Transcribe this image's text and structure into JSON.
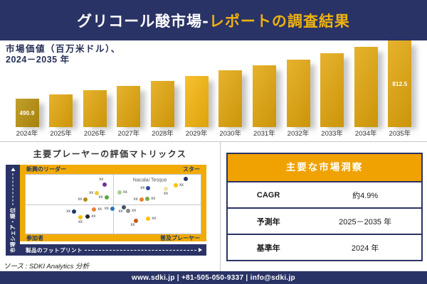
{
  "header": {
    "title_main": "グリコール酸市場-",
    "title_accent": "レポートの調査結果"
  },
  "chart": {
    "title_line1": "市場価値（百万米ドル）、",
    "title_line2": "2024－2035 年"
  },
  "chart_data": {
    "type": "bar",
    "title": "市場価値（百万米ドル）、2024－2035 年",
    "ylabel": "市場価値（百万米ドル）",
    "categories": [
      "2024年",
      "2025年",
      "2026年",
      "2027年",
      "2028年",
      "2029年",
      "2030年",
      "2031年",
      "2032年",
      "2033年",
      "2034年",
      "2035年"
    ],
    "values": [
      490.9,
      513.9,
      538.0,
      563.3,
      589.7,
      617.3,
      646.3,
      676.6,
      708.3,
      741.5,
      776.3,
      812.5
    ],
    "value_labels": {
      "0": "490.9",
      "11": "812.5"
    },
    "bar_color_overrides": {
      "0": "#B8900B",
      "5": "#F5B60C"
    },
    "axis_visible": false,
    "legend": "none"
  },
  "matrix": {
    "title": "主要プレーヤーの評価マトリックス",
    "quadrants": {
      "top_left": "新興のリーダー",
      "top_right": "スター",
      "bottom_left": "参加者",
      "bottom_right": "普及プレーヤー"
    },
    "y_axis_label": "市場シェア・順位",
    "x_axis_label": "製品のフットプリント",
    "annotation": "Nacalai Tesque",
    "point_label": "xx",
    "points": [
      {
        "x": 45.2,
        "y": 17.1,
        "color": "#7030A0",
        "label_pos": "above-left"
      },
      {
        "x": 40.7,
        "y": 31.0,
        "color": "#EDC93C",
        "label_pos": "left"
      },
      {
        "x": 34.3,
        "y": 42.7,
        "color": "#B28B0F",
        "label_pos": "left"
      },
      {
        "x": 46.2,
        "y": 38.7,
        "color": "#59A83B",
        "label_pos": "left"
      },
      {
        "x": 53.6,
        "y": 29.7,
        "color": "#A9CE8E",
        "label_pos": "right"
      },
      {
        "x": 70.0,
        "y": 23.3,
        "color": "#2F4B9B",
        "label_pos": "left"
      },
      {
        "x": 80.1,
        "y": 24.4,
        "color": "#F2E3A0",
        "label_pos": "below"
      },
      {
        "x": 85.7,
        "y": 18.3,
        "color": "#FFC000",
        "label_pos": "right"
      },
      {
        "x": 91.4,
        "y": 7.8,
        "color": "#1F3864",
        "label_pos": "none"
      },
      {
        "x": 66.1,
        "y": 41.9,
        "color": "#ED7D31",
        "label_pos": "left"
      },
      {
        "x": 69.6,
        "y": 40.7,
        "color": "#70AD47",
        "label_pos": "right"
      },
      {
        "x": 39.1,
        "y": 59.0,
        "color": "#ED7D31",
        "label_pos": "right"
      },
      {
        "x": 49.5,
        "y": 57.8,
        "color": "#2E75B6",
        "label_pos": "left"
      },
      {
        "x": 56.3,
        "y": 55.5,
        "color": "#44546A",
        "label_pos": "below-left"
      },
      {
        "x": 58.6,
        "y": 61.3,
        "color": "#8C8C8C",
        "label_pos": "right"
      },
      {
        "x": 27.7,
        "y": 63.1,
        "color": "#203864",
        "label_pos": "left"
      },
      {
        "x": 35.5,
        "y": 70.9,
        "color": "#262626",
        "label_pos": "right"
      },
      {
        "x": 31.3,
        "y": 71.7,
        "color": "#FFC000",
        "label_pos": "below"
      },
      {
        "x": 63.2,
        "y": 78.7,
        "color": "#C55A11",
        "label_pos": "below-left"
      },
      {
        "x": 70.0,
        "y": 74.8,
        "color": "#FFC000",
        "label_pos": "right"
      }
    ]
  },
  "insights": {
    "title": "主要な市場洞察",
    "rows": [
      {
        "label": "CAGR",
        "value": "約4.9%"
      },
      {
        "label": "予測年",
        "value": "2025－2035 年"
      },
      {
        "label": "基準年",
        "value": "2024 年"
      }
    ]
  },
  "source": "ソース : SDKI Analytics 分析",
  "footer": "www.sdki.jp | +81-505-050-9337 | info@sdki.jp",
  "colors": {
    "navy": "#2A3365",
    "gold_band": "#F2AB05",
    "gold_header": "#F0A202",
    "title_accent": "#EFB310",
    "bar_default": "#E2A60B",
    "bar_first": "#B8900B",
    "bar_highlight": "#F5B60C"
  }
}
